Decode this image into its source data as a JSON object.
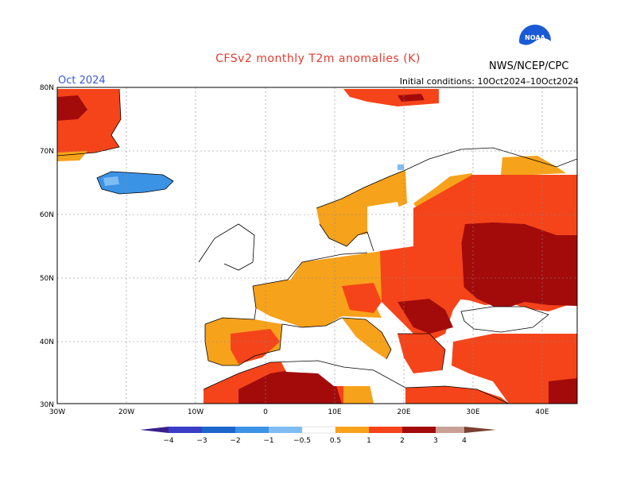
{
  "title": "CFSv2 monthly T2m anomalies (K)",
  "month_label": "Oct 2024",
  "initial_conditions": "Initial conditions: 10Oct2024–10Oct2024",
  "agency": "NWS/NCEP/CPC",
  "logo_text": "NOAA",
  "lat_ticks": [
    "80N",
    "70N",
    "60N",
    "50N",
    "40N",
    "30N"
  ],
  "lon_ticks": [
    "30W",
    "20W",
    "10W",
    "0",
    "10E",
    "20E",
    "30E",
    "40E"
  ],
  "colorbar": {
    "labels": [
      "−4",
      "−3",
      "−2",
      "−1",
      "−0.5",
      "0.5",
      "1",
      "2",
      "3",
      "4"
    ],
    "colors": {
      "lt_-4": "#3a1f8c",
      "-4_-3": "#3a3ec6",
      "-3_-2": "#1d66cc",
      "-2_-1": "#3b93e6",
      "-1_-0.5": "#7fbcf2",
      "-0.5_0.5": "#ffffff",
      "0.5_1": "#f7a21b",
      "1_2": "#f5441a",
      "2_3": "#a30b0b",
      "3_4": "#c9a096",
      "gt_4": "#7a4030"
    }
  }
}
